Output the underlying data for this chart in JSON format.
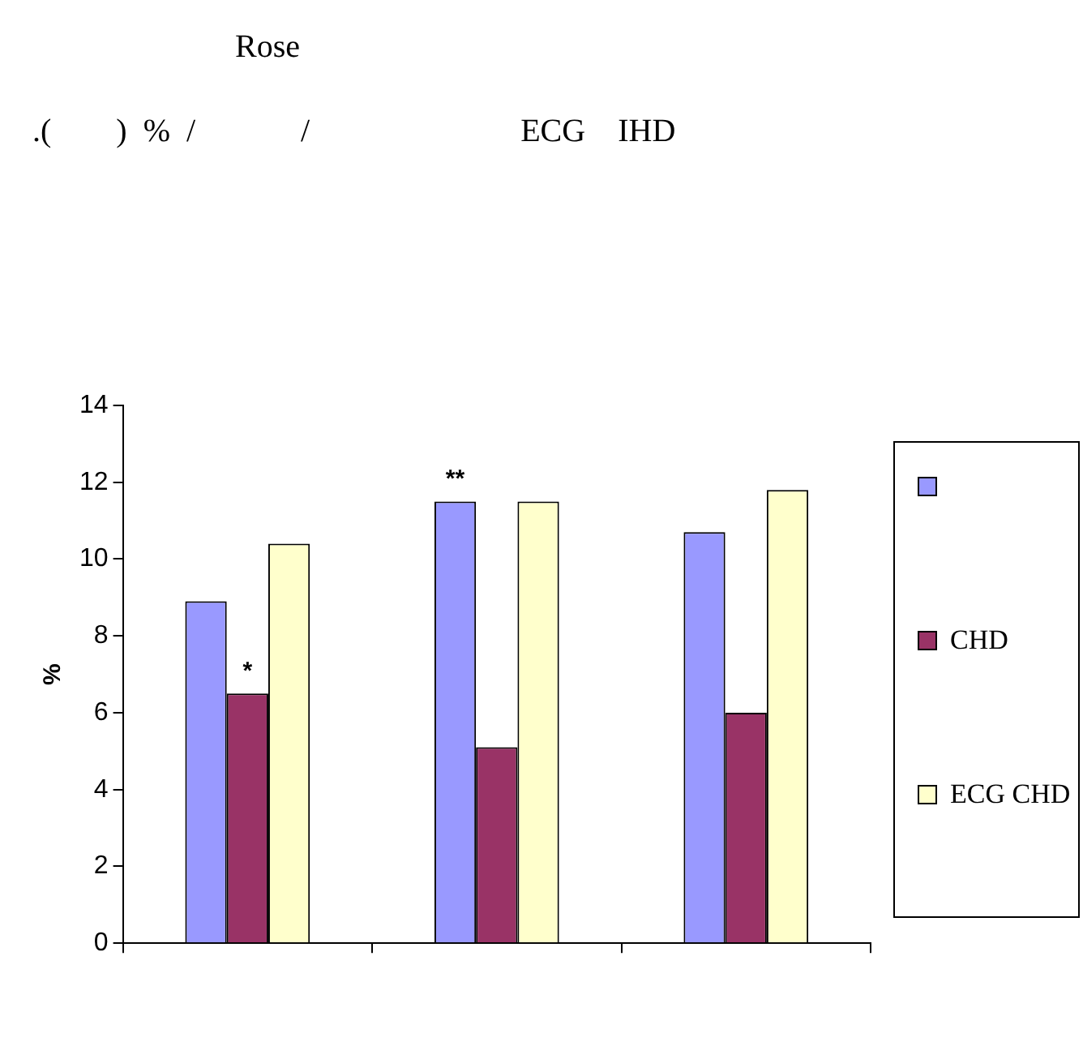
{
  "chart_data": {
    "type": "bar",
    "title": "Rose",
    "subtitle": ".(        )  %  /             /                          ECG    IHD",
    "ylabel": "%",
    "categories": [
      null,
      null,
      null
    ],
    "series": [
      {
        "color": "#9999ff",
        "values": [
          8.9,
          11.5,
          10.7
        ]
      },
      {
        "name": "CHD",
        "color": "#993366",
        "values": [
          6.5,
          5.1,
          6.0
        ]
      },
      {
        "name": "ECG CHD",
        "color": "#ffffcc",
        "values": [
          10.4,
          11.5,
          11.8
        ]
      }
    ],
    "ylim": [
      0,
      14
    ],
    "yticks": [
      0,
      2,
      4,
      6,
      8,
      10,
      12,
      14
    ],
    "grid": false,
    "legend": "right",
    "annotations": [
      {
        "text": "*",
        "y": 6.5
      },
      {
        "text": "**",
        "y": 11.5
      }
    ]
  }
}
